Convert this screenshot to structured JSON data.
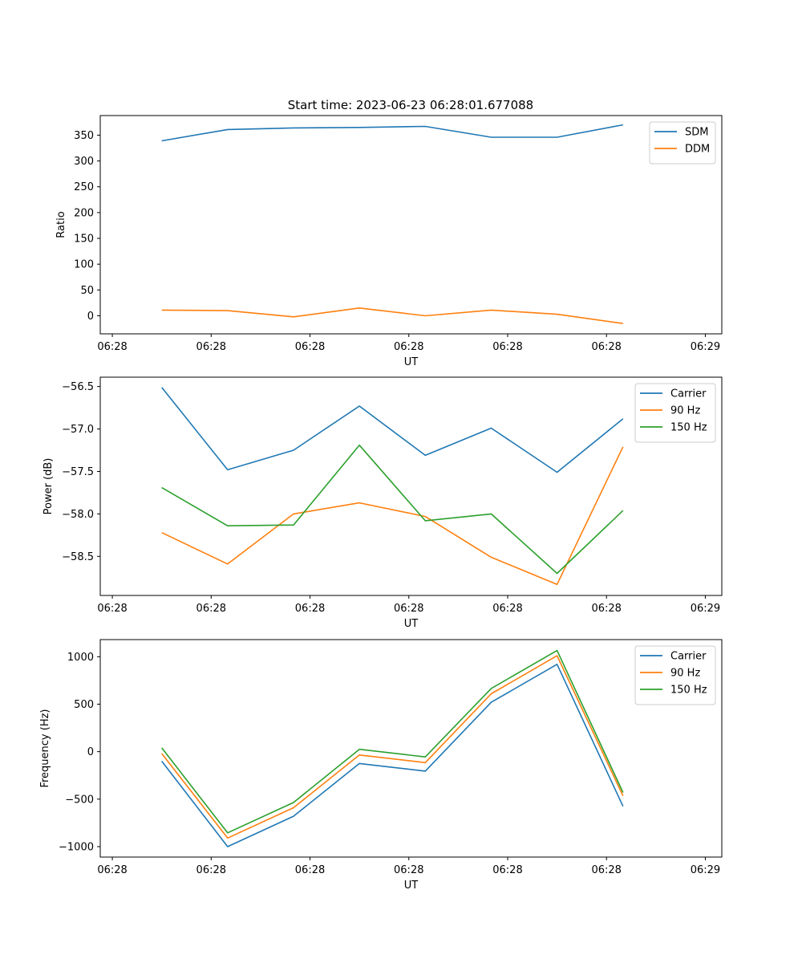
{
  "figure": {
    "title": "Start time: 2023-06-23 06:28:01.677088"
  },
  "chart_data": [
    {
      "type": "line",
      "xlabel": "UT",
      "ylabel": "Ratio",
      "x": [
        "06:28:01.8",
        "06:28:02.4",
        "06:28:03.0",
        "06:28:03.6",
        "06:28:04.2",
        "06:28:04.8",
        "06:28:05.4",
        "06:28:06.0"
      ],
      "x_ticks": [
        "06:28",
        "06:28",
        "06:28",
        "06:28",
        "06:28",
        "06:28",
        "06:29"
      ],
      "xlim_seconds": [
        1.39,
        7.05
      ],
      "x_tick_seconds": [
        1.5,
        2.4,
        3.3,
        4.2,
        5.1,
        6.0,
        6.9
      ],
      "x_seconds": [
        1.95,
        2.55,
        3.15,
        3.75,
        4.35,
        4.95,
        5.55,
        6.15
      ],
      "ylim": [
        -35,
        388
      ],
      "y_ticks": [
        0,
        50,
        100,
        150,
        200,
        250,
        300,
        350
      ],
      "series": [
        {
          "name": "SDM",
          "color": "#1f77b4",
          "values": [
            339,
            361,
            364,
            365,
            367,
            346,
            346,
            370
          ]
        },
        {
          "name": "DDM",
          "color": "#ff7f0e",
          "values": [
            11,
            10,
            -2,
            15,
            0,
            11,
            3,
            -15
          ]
        }
      ],
      "legend": "upper right",
      "grid": false
    },
    {
      "type": "line",
      "xlabel": "UT",
      "ylabel": "Power (dB)",
      "x_ticks": [
        "06:28",
        "06:28",
        "06:28",
        "06:28",
        "06:28",
        "06:28",
        "06:29"
      ],
      "xlim_seconds": [
        1.39,
        7.05
      ],
      "x_tick_seconds": [
        1.5,
        2.4,
        3.3,
        4.2,
        5.1,
        6.0,
        6.9
      ],
      "x_seconds": [
        1.95,
        2.55,
        3.15,
        3.75,
        4.35,
        4.95,
        5.55,
        6.15
      ],
      "ylim": [
        -58.96,
        -56.39
      ],
      "y_ticks": [
        -56.5,
        -57.0,
        -57.5,
        -58.0,
        -58.5
      ],
      "y_tick_labels": [
        "−56.5",
        "−57.0",
        "−57.5",
        "−58.0",
        "−58.5"
      ],
      "series": [
        {
          "name": "Carrier",
          "color": "#1f77b4",
          "values": [
            -56.51,
            -57.48,
            -57.25,
            -56.73,
            -57.31,
            -56.99,
            -57.51,
            -56.88
          ]
        },
        {
          "name": "90 Hz",
          "color": "#ff7f0e",
          "values": [
            -58.22,
            -58.59,
            -58.0,
            -57.87,
            -58.03,
            -58.51,
            -58.83,
            -57.21
          ]
        },
        {
          "name": "150 Hz",
          "color": "#2ca02c",
          "values": [
            -57.69,
            -58.14,
            -58.13,
            -57.19,
            -58.08,
            -58.0,
            -58.7,
            -57.96
          ]
        }
      ],
      "legend": "upper right",
      "grid": false
    },
    {
      "type": "line",
      "xlabel": "UT",
      "ylabel": "Frequency (Hz)",
      "x_ticks": [
        "06:28",
        "06:28",
        "06:28",
        "06:28",
        "06:28",
        "06:28",
        "06:29"
      ],
      "xlim_seconds": [
        1.39,
        7.05
      ],
      "x_tick_seconds": [
        1.5,
        2.4,
        3.3,
        4.2,
        5.1,
        6.0,
        6.9
      ],
      "x_seconds": [
        1.95,
        2.55,
        3.15,
        3.75,
        4.35,
        4.95,
        5.55,
        6.15
      ],
      "ylim": [
        -1110,
        1180
      ],
      "y_ticks": [
        1000,
        500,
        0,
        -500,
        -1000
      ],
      "y_tick_labels": [
        "1000",
        "500",
        "0",
        "−500",
        "−1000"
      ],
      "series": [
        {
          "name": "Carrier",
          "color": "#1f77b4",
          "values": [
            -100,
            -1000,
            -680,
            -125,
            -205,
            520,
            920,
            -575
          ]
        },
        {
          "name": "90 Hz",
          "color": "#ff7f0e",
          "values": [
            -20,
            -910,
            -590,
            -35,
            -115,
            610,
            1010,
            -465
          ]
        },
        {
          "name": "150 Hz",
          "color": "#2ca02c",
          "values": [
            40,
            -855,
            -535,
            25,
            -55,
            665,
            1065,
            -430
          ]
        }
      ],
      "legend": "upper right",
      "grid": false
    }
  ]
}
